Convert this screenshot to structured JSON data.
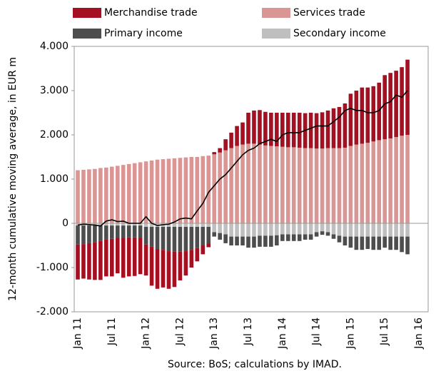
{
  "chart_data": {
    "type": "bar",
    "y_label": "12-month cumulative moving average, in EUR m",
    "source": "Source: BoS; calculations by IMAD.",
    "categories": [
      "Jan 11",
      null,
      null,
      null,
      null,
      null,
      "Jul 11",
      null,
      null,
      null,
      null,
      null,
      "Jan 12",
      null,
      null,
      null,
      null,
      null,
      "Jul 12",
      null,
      null,
      null,
      null,
      null,
      "Jan 13",
      null,
      null,
      null,
      null,
      null,
      "Jul 13",
      null,
      null,
      null,
      null,
      null,
      "Jan 14",
      null,
      null,
      null,
      null,
      null,
      "Jul 14",
      null,
      null,
      null,
      null,
      null,
      "Jan 15",
      null,
      null,
      null,
      null,
      null,
      "Jul 15",
      null,
      null,
      null,
      null,
      null,
      "Jan 16"
    ],
    "series": [
      {
        "name": "Merchandise trade",
        "color": "#a50f22",
        "values": [
          -790,
          -780,
          -820,
          -850,
          -880,
          -830,
          -850,
          -800,
          -900,
          -880,
          -870,
          -820,
          -700,
          -880,
          -900,
          -850,
          -850,
          -800,
          -650,
          -550,
          -400,
          -300,
          -200,
          -80,
          50,
          100,
          250,
          350,
          450,
          500,
          700,
          750,
          780,
          760,
          750,
          760,
          770,
          780,
          780,
          790,
          790,
          800,
          800,
          820,
          850,
          900,
          930,
          1000,
          1180,
          1220,
          1270,
          1250,
          1250,
          1300,
          1450,
          1480,
          1500,
          1550,
          1700,
          null,
          null
        ]
      },
      {
        "name": "Services trade",
        "color": "#d99694",
        "values": [
          1200,
          1210,
          1220,
          1230,
          1250,
          1260,
          1280,
          1300,
          1320,
          1340,
          1360,
          1380,
          1400,
          1420,
          1440,
          1450,
          1460,
          1470,
          1480,
          1490,
          1500,
          1500,
          1520,
          1530,
          1560,
          1600,
          1650,
          1700,
          1750,
          1780,
          1800,
          1800,
          1780,
          1760,
          1750,
          1740,
          1730,
          1720,
          1720,
          1710,
          1700,
          1700,
          1690,
          1690,
          1700,
          1700,
          1700,
          1710,
          1750,
          1780,
          1800,
          1820,
          1850,
          1880,
          1900,
          1920,
          1950,
          1980,
          2000,
          null,
          null
        ]
      },
      {
        "name": "Primary income",
        "color": "#4d4d4d",
        "values": [
          -430,
          -420,
          -400,
          -380,
          -350,
          -320,
          -300,
          -280,
          -280,
          -270,
          -270,
          -280,
          -400,
          -450,
          -500,
          -520,
          -550,
          -560,
          -560,
          -550,
          -520,
          -480,
          -420,
          -380,
          -100,
          -150,
          -200,
          -200,
          -200,
          -200,
          -250,
          -250,
          -250,
          -250,
          -250,
          -230,
          -150,
          -150,
          -150,
          -150,
          -120,
          -120,
          -100,
          -80,
          -80,
          -100,
          -150,
          -200,
          -250,
          -300,
          -300,
          -280,
          -300,
          -300,
          -250,
          -300,
          -300,
          -350,
          -400,
          null,
          null
        ]
      },
      {
        "name": "Secondary income",
        "color": "#bfbfbf",
        "values": [
          -50,
          -50,
          -50,
          -50,
          -50,
          -50,
          -50,
          -50,
          -50,
          -50,
          -50,
          -50,
          -80,
          -80,
          -80,
          -80,
          -80,
          -80,
          -80,
          -80,
          -80,
          -80,
          -80,
          -80,
          -200,
          -220,
          -250,
          -300,
          -300,
          -300,
          -300,
          -300,
          -280,
          -280,
          -280,
          -270,
          -250,
          -250,
          -250,
          -250,
          -250,
          -250,
          -200,
          -180,
          -200,
          -250,
          -280,
          -300,
          -300,
          -300,
          -300,
          -300,
          -300,
          -300,
          -300,
          -300,
          -300,
          -300,
          -300,
          null,
          null
        ]
      },
      {
        "type": "line",
        "color": "#000000",
        "values": [
          -40,
          -20,
          -30,
          -40,
          -60,
          50,
          80,
          40,
          50,
          0,
          0,
          0,
          150,
          0,
          -50,
          -30,
          -20,
          30,
          100,
          120,
          100,
          280,
          450,
          700,
          850,
          1000,
          1100,
          1250,
          1400,
          1550,
          1650,
          1700,
          1800,
          1850,
          1900,
          1850,
          2000,
          2050,
          2050,
          2050,
          2100,
          2150,
          2200,
          2200,
          2200,
          2300,
          2400,
          2550,
          2600,
          2550,
          2550,
          2500,
          2500,
          2550,
          2700,
          2750,
          2900,
          2850,
          3000,
          null,
          null
        ]
      }
    ],
    "ylim": [
      -2000,
      4000
    ],
    "yticks": [
      {
        "value": -2000,
        "label": "-2.000"
      },
      {
        "value": -1000,
        "label": "-1.000"
      },
      0,
      {
        "value": 1000,
        "label": "1.000"
      },
      {
        "value": 2000,
        "label": "2.000"
      },
      {
        "value": 3000,
        "label": "3.000"
      },
      {
        "value": 4000,
        "label": "4.000"
      }
    ]
  }
}
